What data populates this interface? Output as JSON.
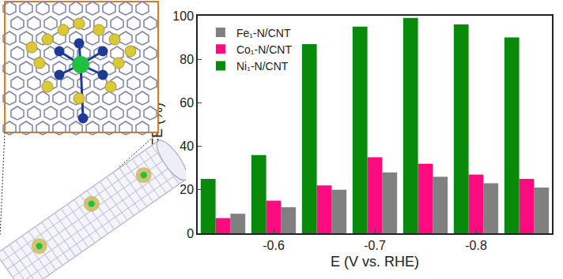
{
  "chart_data": {
    "type": "bar",
    "x": [
      -0.55,
      -0.6,
      -0.65,
      -0.7,
      -0.75,
      -0.8,
      -0.85
    ],
    "series": [
      {
        "name": "Fe₁-N/CNT",
        "color": "#808080",
        "values": [
          9,
          12,
          20,
          28,
          26,
          23,
          21
        ]
      },
      {
        "name": "Co₁-N/CNT",
        "color": "#ff0a80",
        "values": [
          7,
          15,
          22,
          35,
          32,
          27,
          25
        ]
      },
      {
        "name": "Ni₁-N/CNT",
        "color": "#0a8a0a",
        "values": [
          25,
          36,
          87,
          95,
          99,
          96,
          90
        ]
      }
    ],
    "xlabel": "E (V vs. RHE)",
    "ylabel": "FE (%)",
    "xlim": [
      -0.525,
      -0.875
    ],
    "xticks": [
      -0.6,
      -0.7,
      -0.8
    ],
    "ylim": [
      0,
      100
    ],
    "yticks": [
      0,
      20,
      40,
      60,
      80,
      100
    ],
    "legend": "upper left",
    "grid": false
  }
}
